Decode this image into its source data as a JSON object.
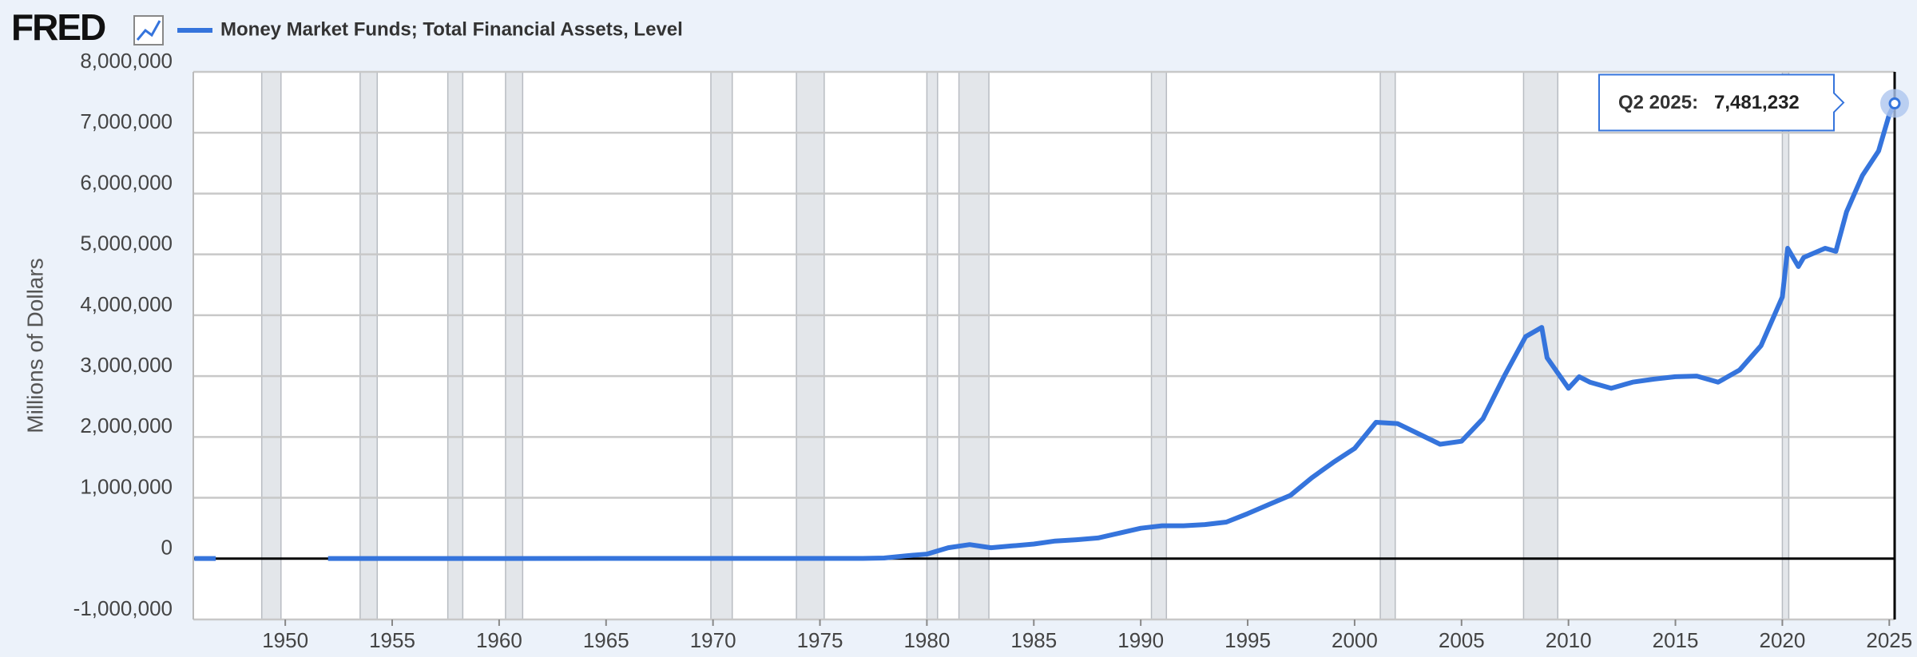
{
  "logo": "FRED",
  "chart_data": {
    "type": "line",
    "ylabel": "Millions of Dollars",
    "x": [
      1945.75,
      1946.25,
      1946.75,
      1947.0,
      1952.0,
      1960,
      1970,
      1975,
      1977,
      1978,
      1979,
      1980,
      1981,
      1982,
      1983,
      1984,
      1985,
      1986,
      1987,
      1988,
      1989,
      1990,
      1991,
      1992,
      1993,
      1994,
      1995,
      1996,
      1997,
      1998,
      1999,
      2000,
      2001,
      2002,
      2003,
      2004,
      2005,
      2006,
      2007,
      2008,
      2008.75,
      2009,
      2010,
      2010.5,
      2011,
      2012,
      2013,
      2014,
      2015,
      2016,
      2017,
      2018,
      2019,
      2020,
      2020.25,
      2020.75,
      2021,
      2022,
      2022.5,
      2023,
      2023.75,
      2024.5,
      2025,
      2025.25
    ],
    "series": [
      {
        "name": "Money Market Funds; Total Financial Assets, Level",
        "color": "#3574dc",
        "values": [
          2000,
          2000,
          2000,
          null,
          2000,
          2500,
          3000,
          3500,
          4000,
          10000,
          45000,
          75000,
          180000,
          230000,
          180000,
          210000,
          240000,
          290000,
          310000,
          340000,
          420000,
          500000,
          540000,
          540000,
          560000,
          600000,
          740000,
          890000,
          1040000,
          1330000,
          1580000,
          1810000,
          2240000,
          2220000,
          2050000,
          1880000,
          1930000,
          2300000,
          3000000,
          3650000,
          3800000,
          3300000,
          2800000,
          2990000,
          2900000,
          2800000,
          2900000,
          2950000,
          2990000,
          3000000,
          2900000,
          3100000,
          3500000,
          4300000,
          5100000,
          4800000,
          4950000,
          5100000,
          5050000,
          5700000,
          6300000,
          6700000,
          7300000,
          7481232
        ]
      }
    ],
    "xlim": [
      1945.7,
      2025.25
    ],
    "ylim": [
      -1000000,
      8000000
    ],
    "xticks": [
      1950,
      1955,
      1960,
      1965,
      1970,
      1975,
      1980,
      1985,
      1990,
      1995,
      2000,
      2005,
      2010,
      2015,
      2020,
      2025
    ],
    "yticks": [
      {
        "value": -1000000,
        "label": "-1,000,000"
      },
      0,
      {
        "value": 1000000,
        "label": "1,000,000"
      },
      {
        "value": 2000000,
        "label": "2,000,000"
      },
      {
        "value": 3000000,
        "label": "3,000,000"
      },
      {
        "value": 4000000,
        "label": "4,000,000"
      },
      {
        "value": 5000000,
        "label": "5,000,000"
      },
      {
        "value": 6000000,
        "label": "6,000,000"
      },
      {
        "value": 7000000,
        "label": "7,000,000"
      },
      {
        "value": 8000000,
        "label": "8,000,000"
      }
    ],
    "grid": true,
    "recessions": [
      [
        1948.9,
        1949.8
      ],
      [
        1953.5,
        1954.3
      ],
      [
        1957.6,
        1958.3
      ],
      [
        1960.3,
        1961.1
      ],
      [
        1969.9,
        1970.9
      ],
      [
        1973.9,
        1975.2
      ],
      [
        1980.0,
        1980.5
      ],
      [
        1981.5,
        1982.9
      ],
      [
        1990.5,
        1991.2
      ],
      [
        2001.2,
        2001.9
      ],
      [
        2007.9,
        2009.5
      ],
      [
        2020.0,
        2020.3
      ]
    ],
    "annotation": {
      "label": "Q2 2025:",
      "value_label": "7,481,232",
      "x": 2025.25,
      "y": 7481232
    }
  }
}
